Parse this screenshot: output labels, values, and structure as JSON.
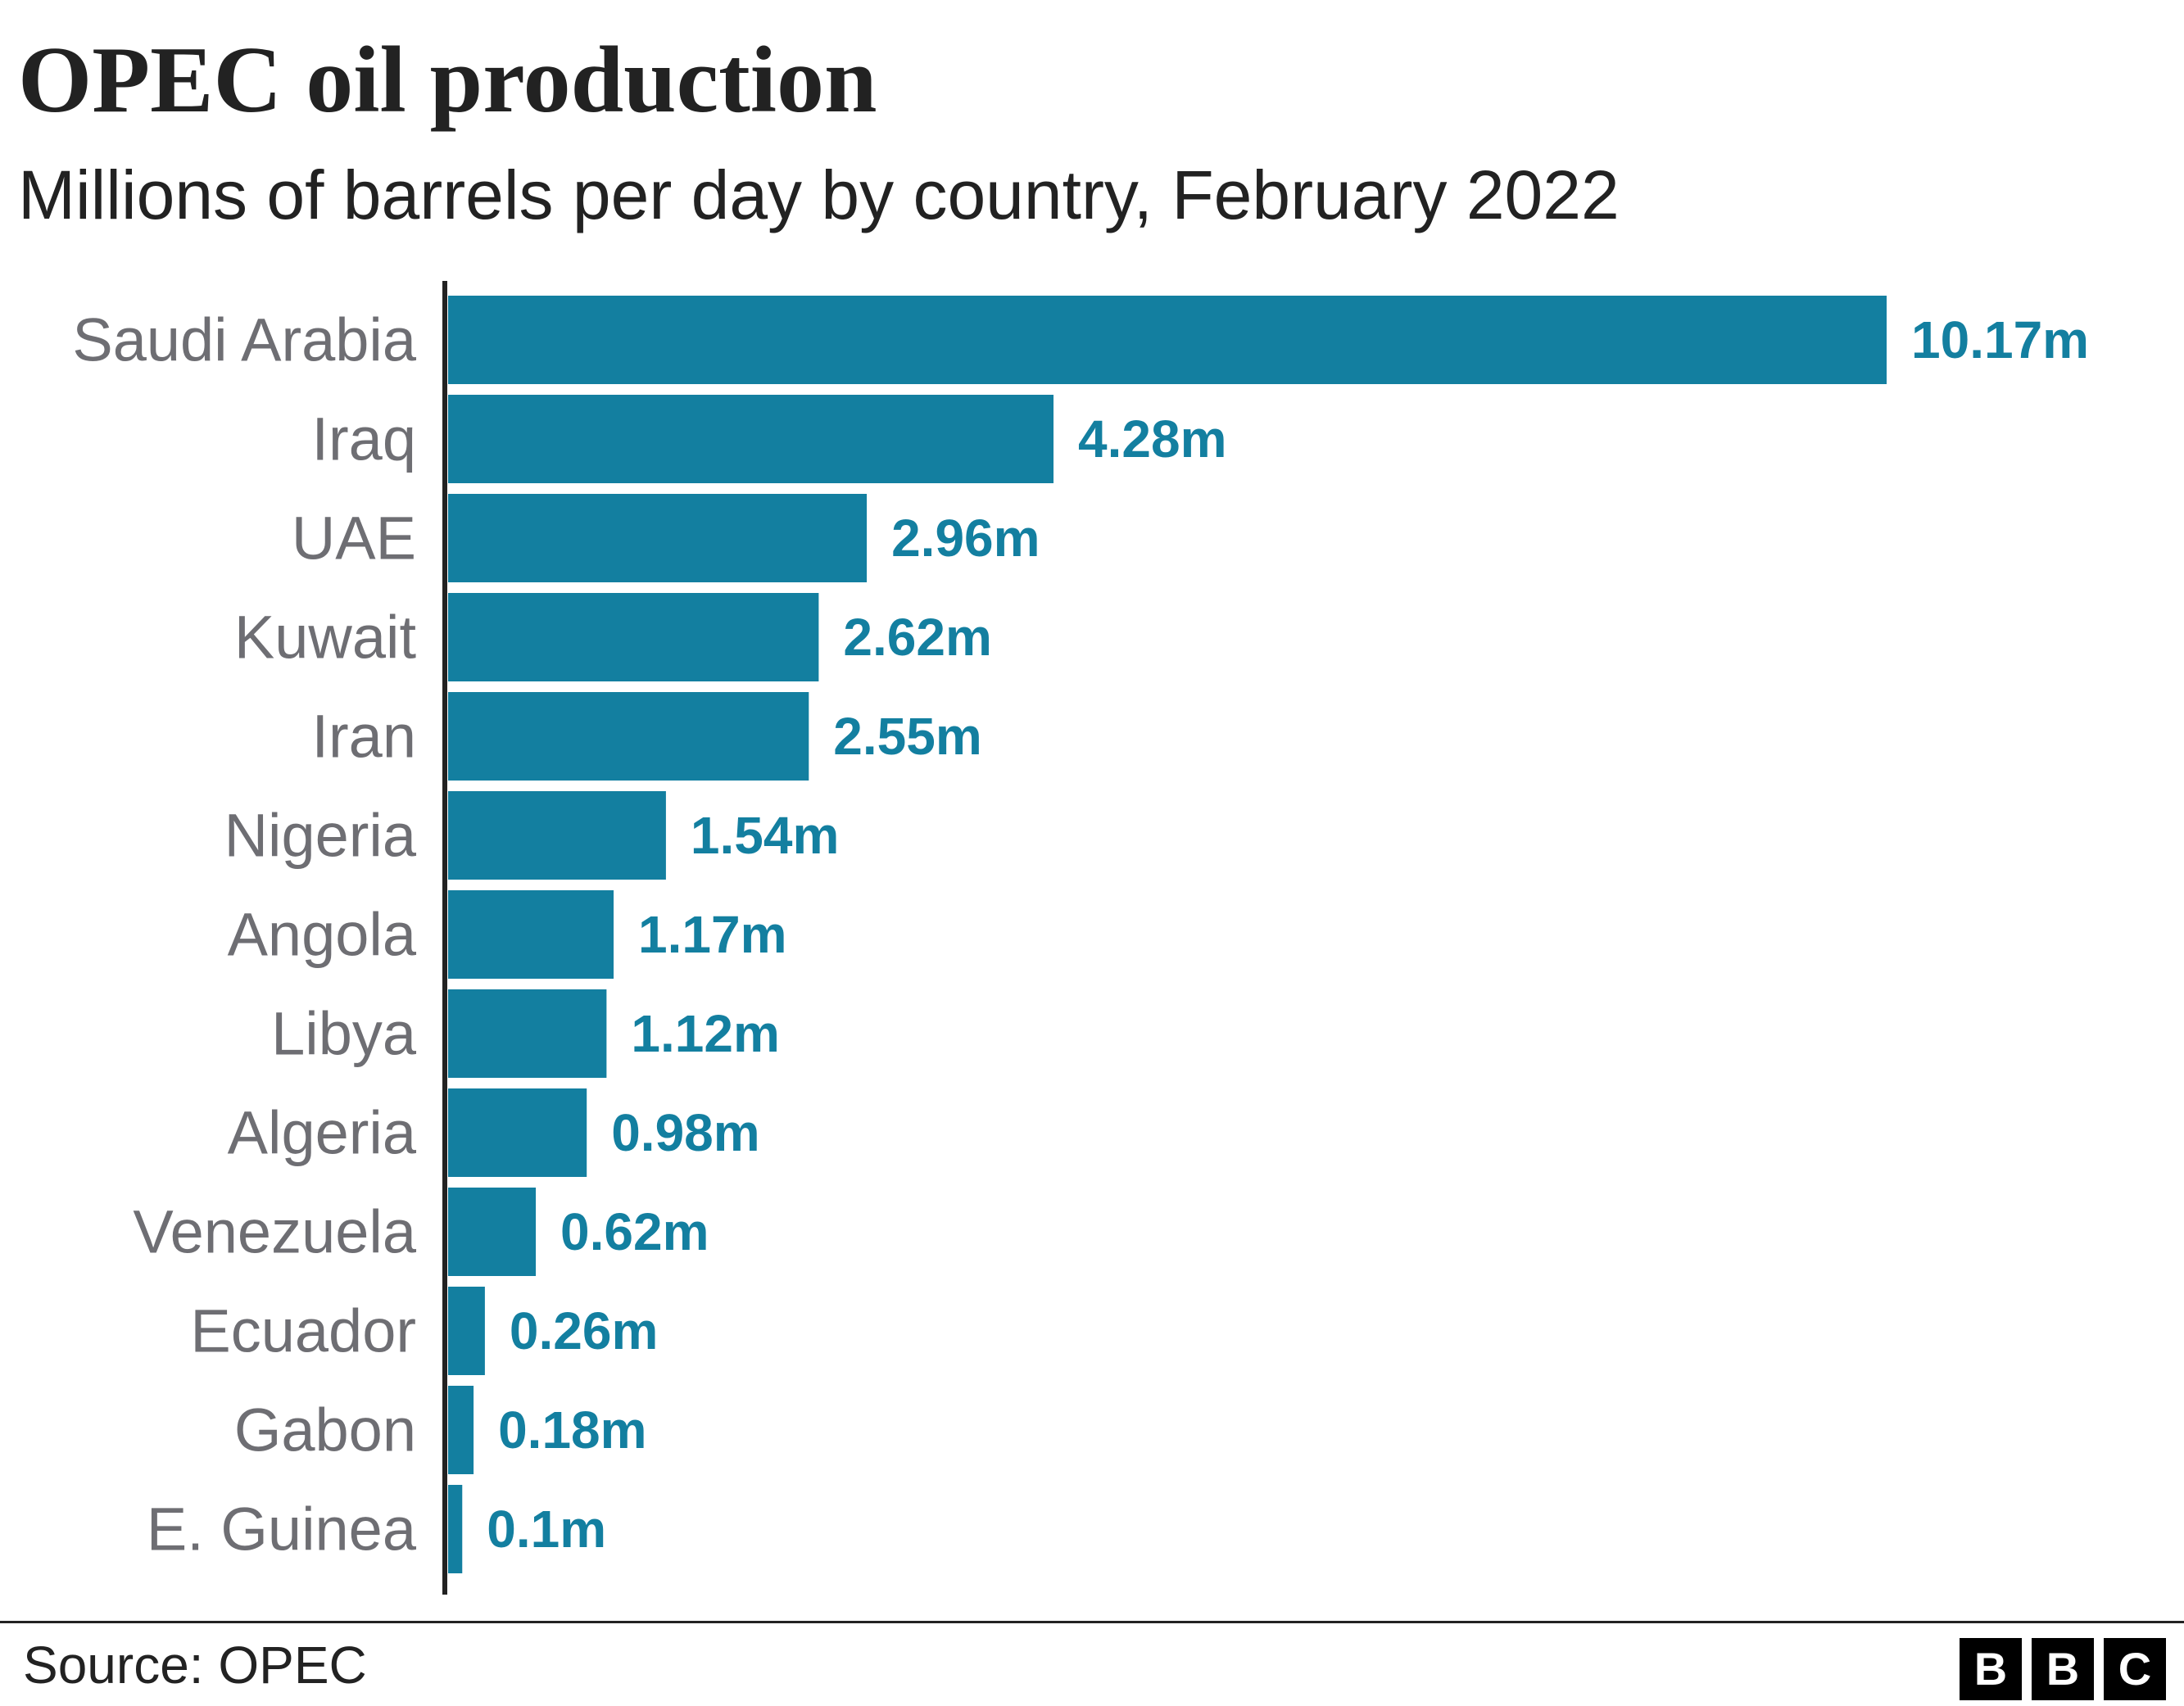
{
  "colors": {
    "bar": "#137fa0",
    "value_label": "#137fa0",
    "axis": "#222222",
    "category_label": "#6e6e73"
  },
  "chart_data": {
    "type": "bar",
    "orientation": "horizontal",
    "title": "OPEC oil production",
    "subtitle": "Millions of barrels per day by country, February 2022",
    "categories": [
      "Saudi Arabia",
      "Iraq",
      "UAE",
      "Kuwait",
      "Iran",
      "Nigeria",
      "Angola",
      "Libya",
      "Algeria",
      "Venezuela",
      "Ecuador",
      "Gabon",
      "E. Guinea"
    ],
    "values": [
      10.17,
      4.28,
      2.96,
      2.62,
      2.55,
      1.54,
      1.17,
      1.12,
      0.98,
      0.62,
      0.26,
      0.18,
      0.1
    ],
    "value_labels": [
      "10.17m",
      "4.28m",
      "2.96m",
      "2.62m",
      "2.55m",
      "1.54m",
      "1.17m",
      "1.12m",
      "0.98m",
      "0.62m",
      "0.26m",
      "0.18m",
      "0.1m"
    ],
    "xlim": [
      0,
      10.17
    ],
    "grid": false,
    "legend": "none"
  },
  "footer": {
    "source": "Source: OPEC",
    "logo_letters": [
      "B",
      "B",
      "C"
    ]
  }
}
